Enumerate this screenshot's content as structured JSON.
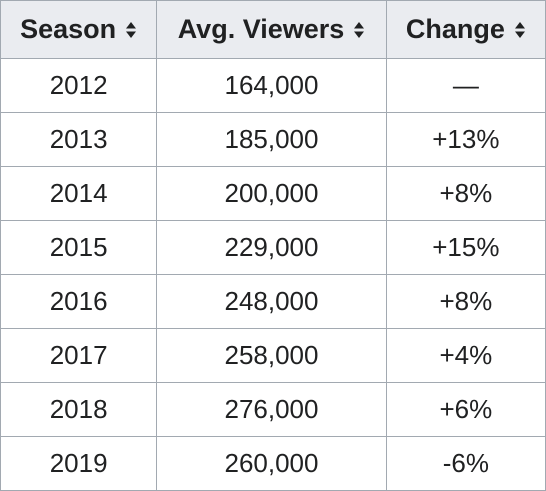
{
  "table": {
    "columns": [
      {
        "label": "Season",
        "sort_icon": "sort-updown-icon"
      },
      {
        "label": "Avg. Viewers",
        "sort_icon": "sort-updown-icon"
      },
      {
        "label": "Change",
        "sort_icon": "sort-updown-icon"
      }
    ],
    "rows": [
      {
        "season": "2012",
        "viewers": "164,000",
        "change": "—"
      },
      {
        "season": "2013",
        "viewers": "185,000",
        "change": "+13%"
      },
      {
        "season": "2014",
        "viewers": "200,000",
        "change": "+8%"
      },
      {
        "season": "2015",
        "viewers": "229,000",
        "change": "+15%"
      },
      {
        "season": "2016",
        "viewers": "248,000",
        "change": "+8%"
      },
      {
        "season": "2017",
        "viewers": "258,000",
        "change": "+4%"
      },
      {
        "season": "2018",
        "viewers": "276,000",
        "change": "+6%"
      },
      {
        "season": "2019",
        "viewers": "260,000",
        "change": "-6%"
      }
    ]
  },
  "colors": {
    "header_bg": "#eaecf0",
    "border": "#a2a9b1",
    "text": "#202122"
  }
}
